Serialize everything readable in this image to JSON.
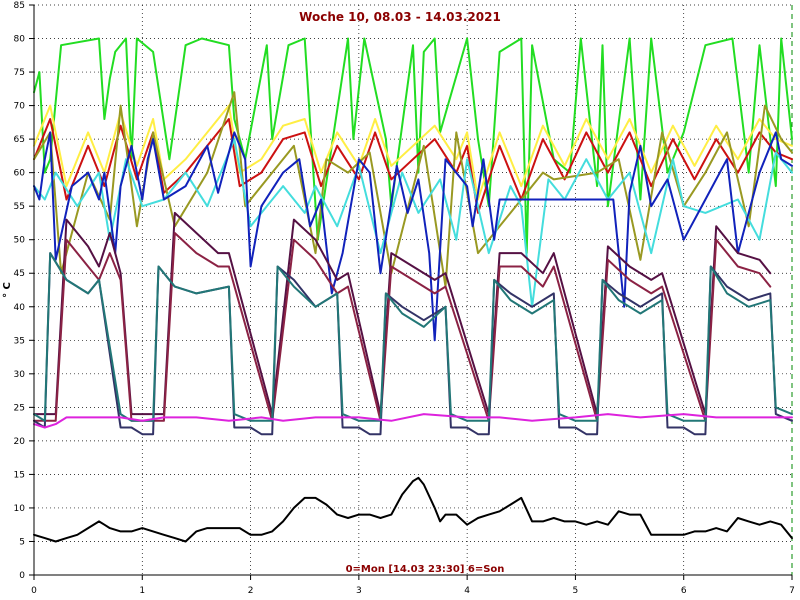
{
  "chart_data": {
    "type": "line",
    "title": "Woche 10, 08.03 - 14.03.2021",
    "footer": "0=Mon [14.03 23:30] 6=Son",
    "ylabel": "° C",
    "xlabel": "",
    "xlim": [
      0,
      7
    ],
    "ylim": [
      0,
      85
    ],
    "x_ticks": [
      0,
      1,
      2,
      3,
      4,
      5,
      6,
      7
    ],
    "y_ticks": [
      0,
      5,
      10,
      15,
      20,
      25,
      30,
      35,
      40,
      45,
      50,
      55,
      60,
      65,
      70,
      75,
      80,
      85
    ],
    "grid": true,
    "series": [
      {
        "color": "#22dd22",
        "x": [
          0,
          0.05,
          0.1,
          0.15,
          0.25,
          0.6,
          0.65,
          0.7,
          0.75,
          0.85,
          0.9,
          0.95,
          1.1,
          1.25,
          1.4,
          1.55,
          1.8,
          1.85,
          1.95,
          2.15,
          2.2,
          2.35,
          2.5,
          2.62,
          2.75,
          2.9,
          2.95,
          3.05,
          3.25,
          3.3,
          3.5,
          3.55,
          3.6,
          3.7,
          3.75,
          4.0,
          4.1,
          4.2,
          4.3,
          4.5,
          4.55,
          4.6,
          4.8,
          4.95,
          5.05,
          5.2,
          5.25,
          5.3,
          5.5,
          5.6,
          5.7,
          5.85,
          6.0,
          6.2,
          6.45,
          6.6,
          6.7,
          6.85,
          6.9,
          7.0
        ],
        "values": [
          72,
          75,
          60,
          62,
          79,
          80,
          68,
          74,
          78,
          80,
          62,
          80,
          78,
          62,
          79,
          80,
          79,
          68,
          62,
          79,
          65,
          79,
          80,
          50,
          64,
          80,
          65,
          80,
          65,
          55,
          79,
          60,
          78,
          80,
          66,
          80,
          65,
          55,
          78,
          80,
          48,
          79,
          62,
          60,
          80,
          58,
          79,
          55,
          80,
          56,
          80,
          60,
          66,
          79,
          80,
          60,
          79,
          58,
          80,
          65
        ]
      },
      {
        "color": "#ffee44",
        "x": [
          0,
          0.15,
          0.3,
          0.5,
          0.65,
          0.8,
          0.95,
          1.1,
          1.2,
          1.4,
          1.6,
          1.8,
          1.9,
          2.1,
          2.3,
          2.5,
          2.65,
          2.8,
          3.0,
          3.15,
          3.3,
          3.5,
          3.7,
          3.9,
          4.0,
          4.1,
          4.3,
          4.5,
          4.7,
          4.9,
          5.1,
          5.3,
          5.5,
          5.7,
          5.9,
          6.1,
          6.3,
          6.5,
          6.7,
          6.85,
          7.0
        ],
        "values": [
          64,
          70,
          58,
          66,
          60,
          69,
          61,
          68,
          59,
          62,
          66,
          70,
          60,
          62,
          67,
          68,
          60,
          66,
          61,
          68,
          61,
          64,
          67,
          62,
          66,
          56,
          66,
          58,
          67,
          61,
          68,
          62,
          68,
          60,
          67,
          61,
          67,
          62,
          68,
          65,
          64
        ]
      },
      {
        "color": "#cc1111",
        "x": [
          0,
          0.15,
          0.3,
          0.5,
          0.65,
          0.8,
          0.95,
          1.1,
          1.2,
          1.4,
          1.6,
          1.8,
          1.9,
          2.1,
          2.3,
          2.5,
          2.65,
          2.8,
          3.0,
          3.15,
          3.3,
          3.5,
          3.7,
          3.9,
          4.0,
          4.1,
          4.3,
          4.5,
          4.7,
          4.9,
          5.1,
          5.3,
          5.5,
          5.7,
          5.9,
          6.1,
          6.3,
          6.5,
          6.7,
          6.85,
          7.0
        ],
        "values": [
          62,
          68,
          56,
          64,
          58,
          67,
          59,
          66,
          57,
          60,
          64,
          68,
          58,
          60,
          65,
          66,
          58,
          64,
          59,
          66,
          59,
          62,
          65,
          60,
          64,
          54,
          64,
          56,
          65,
          59,
          66,
          60,
          66,
          58,
          65,
          59,
          65,
          60,
          66,
          63,
          62
        ]
      },
      {
        "color": "#999922",
        "x": [
          0,
          0.15,
          0.25,
          0.5,
          0.7,
          0.8,
          0.95,
          1.1,
          1.3,
          1.6,
          1.85,
          1.95,
          2.2,
          2.4,
          2.6,
          2.7,
          2.9,
          3.1,
          3.3,
          3.6,
          3.8,
          3.9,
          4.1,
          4.3,
          4.5,
          4.7,
          4.8,
          5.2,
          5.4,
          5.6,
          5.8,
          6.0,
          6.2,
          6.4,
          6.6,
          6.75,
          6.9,
          7.0
        ],
        "values": [
          62,
          66,
          45,
          60,
          53,
          70,
          52,
          66,
          52,
          60,
          72,
          55,
          60,
          64,
          48,
          62,
          60,
          63,
          45,
          64,
          43,
          66,
          48,
          52,
          56,
          60,
          59,
          60,
          62,
          47,
          66,
          55,
          60,
          66,
          52,
          70,
          65,
          63
        ]
      },
      {
        "color": "#44dddd",
        "x": [
          0,
          0.1,
          0.2,
          0.4,
          0.6,
          0.7,
          0.85,
          1.0,
          1.2,
          1.4,
          1.6,
          1.85,
          2.0,
          2.3,
          2.5,
          2.6,
          2.8,
          3.0,
          3.2,
          3.4,
          3.55,
          3.75,
          3.9,
          4.0,
          4.2,
          4.4,
          4.5,
          4.6,
          4.75,
          4.9,
          5.1,
          5.3,
          5.5,
          5.7,
          5.9,
          6.0,
          6.2,
          6.5,
          6.7,
          6.85,
          7.0
        ],
        "values": [
          58,
          56,
          60,
          55,
          60,
          50,
          62,
          55,
          56,
          60,
          55,
          65,
          52,
          58,
          54,
          58,
          52,
          61,
          48,
          60,
          54,
          59,
          50,
          62,
          48,
          58,
          55,
          40,
          59,
          56,
          62,
          56,
          60,
          48,
          62,
          55,
          54,
          56,
          50,
          63,
          60
        ]
      },
      {
        "color": "#1122bb",
        "x": [
          0,
          0.05,
          0.1,
          0.15,
          0.2,
          0.35,
          0.5,
          0.6,
          0.65,
          0.75,
          0.8,
          0.9,
          1.0,
          1.05,
          1.1,
          1.2,
          1.4,
          1.6,
          1.7,
          1.85,
          1.95,
          2.0,
          2.1,
          2.3,
          2.45,
          2.55,
          2.65,
          2.75,
          2.85,
          3.0,
          3.1,
          3.2,
          3.35,
          3.45,
          3.55,
          3.65,
          3.7,
          3.8,
          4.0,
          4.05,
          4.15,
          4.25,
          4.3,
          5.35,
          5.45,
          5.5,
          5.6,
          5.7,
          5.85,
          6.0,
          6.2,
          6.4,
          6.5,
          6.7,
          6.85,
          6.9,
          7.0
        ],
        "values": [
          58,
          56,
          62,
          66,
          47,
          58,
          60,
          56,
          60,
          48,
          58,
          64,
          56,
          62,
          65,
          56,
          58,
          64,
          57,
          66,
          62,
          46,
          55,
          60,
          62,
          52,
          56,
          42,
          48,
          62,
          60,
          45,
          61,
          54,
          59,
          48,
          35,
          62,
          58,
          52,
          62,
          50,
          56,
          56,
          40,
          57,
          64,
          55,
          59,
          50,
          56,
          62,
          48,
          60,
          66,
          62,
          61
        ]
      },
      {
        "color": "#551144",
        "x": [
          0,
          0.2,
          0.3,
          0.5,
          0.6,
          0.7,
          0.8,
          0.9,
          1.2,
          1.3,
          1.5,
          1.7,
          1.8,
          2.2,
          2.4,
          2.6,
          2.8,
          2.9,
          3.2,
          3.3,
          3.5,
          3.7,
          3.8,
          4.2,
          4.3,
          4.5,
          4.7,
          4.8,
          5.2,
          5.3,
          5.5,
          5.7,
          5.8,
          6.2,
          6.3,
          6.5,
          6.7,
          6.8
        ],
        "values": [
          24,
          24,
          53,
          49,
          46,
          51,
          45,
          24,
          24,
          54,
          51,
          48,
          48,
          24,
          53,
          50,
          44,
          45,
          24,
          48,
          46,
          44,
          45,
          24,
          48,
          48,
          45,
          48,
          24,
          49,
          46,
          44,
          45,
          24,
          52,
          48,
          47,
          45
        ]
      },
      {
        "color": "#8b2244",
        "x": [
          0,
          0.2,
          0.3,
          0.5,
          0.6,
          0.7,
          0.8,
          0.9,
          1.2,
          1.3,
          1.5,
          1.7,
          1.8,
          2.2,
          2.4,
          2.6,
          2.8,
          2.9,
          3.2,
          3.3,
          3.5,
          3.7,
          3.8,
          4.2,
          4.3,
          4.5,
          4.7,
          4.8,
          5.2,
          5.3,
          5.5,
          5.7,
          5.8,
          6.2,
          6.3,
          6.5,
          6.7,
          6.8
        ],
        "values": [
          23,
          23,
          50,
          46,
          44,
          48,
          44,
          23,
          23,
          51,
          48,
          46,
          46,
          23,
          50,
          47,
          42,
          43,
          23,
          46,
          44,
          42,
          43,
          23,
          46,
          46,
          43,
          46,
          23,
          47,
          44,
          42,
          43,
          23,
          50,
          46,
          45,
          43
        ]
      },
      {
        "color": "#333366",
        "x": [
          0,
          0.1,
          0.15,
          0.3,
          0.5,
          0.6,
          0.8,
          0.9,
          1.0,
          1.1,
          1.15,
          1.3,
          1.5,
          1.8,
          1.85,
          2.0,
          2.1,
          2.2,
          2.25,
          2.4,
          2.6,
          2.8,
          2.85,
          3.0,
          3.1,
          3.2,
          3.25,
          3.4,
          3.6,
          3.8,
          3.85,
          4.0,
          4.1,
          4.2,
          4.25,
          4.4,
          4.6,
          4.8,
          4.85,
          5.0,
          5.1,
          5.2,
          5.25,
          5.4,
          5.6,
          5.8,
          5.85,
          6.0,
          6.1,
          6.2,
          6.25,
          6.4,
          6.6,
          6.8,
          6.85,
          7.0
        ],
        "values": [
          23,
          22,
          48,
          44,
          42,
          44,
          22,
          22,
          21,
          21,
          46,
          43,
          42,
          43,
          22,
          22,
          21,
          21,
          46,
          44,
          40,
          42,
          22,
          22,
          21,
          21,
          42,
          40,
          38,
          40,
          22,
          22,
          21,
          21,
          44,
          42,
          40,
          42,
          22,
          22,
          21,
          21,
          44,
          42,
          40,
          42,
          22,
          22,
          21,
          21,
          46,
          43,
          41,
          42,
          24,
          23
        ]
      },
      {
        "color": "#227777",
        "x": [
          0,
          0.1,
          0.15,
          0.3,
          0.5,
          0.6,
          0.8,
          0.9,
          1.0,
          1.1,
          1.15,
          1.3,
          1.5,
          1.8,
          1.85,
          2.0,
          2.1,
          2.2,
          2.25,
          2.4,
          2.6,
          2.8,
          2.85,
          3.0,
          3.1,
          3.2,
          3.25,
          3.4,
          3.6,
          3.8,
          3.85,
          4.0,
          4.1,
          4.2,
          4.25,
          4.4,
          4.6,
          4.8,
          4.85,
          5.0,
          5.1,
          5.2,
          5.25,
          5.4,
          5.6,
          5.8,
          5.85,
          6.0,
          6.1,
          6.2,
          6.25,
          6.4,
          6.6,
          6.8,
          6.85,
          7.0
        ],
        "values": [
          24,
          23,
          48,
          44,
          42,
          44,
          24,
          23,
          23,
          23,
          46,
          43,
          42,
          43,
          24,
          23,
          23,
          23,
          46,
          43,
          40,
          42,
          24,
          23,
          23,
          23,
          42,
          39,
          37,
          40,
          24,
          23,
          23,
          23,
          44,
          41,
          39,
          41,
          24,
          23,
          23,
          23,
          44,
          41,
          39,
          41,
          24,
          23,
          23,
          23,
          46,
          42,
          40,
          41,
          25,
          24
        ]
      },
      {
        "color": "#dd22dd",
        "x": [
          0,
          0.1,
          0.2,
          0.3,
          0.5,
          0.8,
          1.0,
          1.2,
          1.5,
          1.8,
          2.1,
          2.3,
          2.6,
          3.0,
          3.3,
          3.6,
          4.0,
          4.3,
          4.6,
          5.0,
          5.3,
          5.6,
          6.0,
          6.3,
          6.6,
          7.0
        ],
        "values": [
          22.5,
          22,
          22.5,
          23.5,
          23.5,
          23.5,
          23,
          23.5,
          23.5,
          23,
          23.5,
          23,
          23.5,
          23.5,
          23,
          24,
          23.5,
          23.5,
          23,
          23.5,
          24,
          23.5,
          24,
          23.5,
          23.5,
          23.5
        ]
      },
      {
        "color": "#000000",
        "x": [
          0,
          0.1,
          0.2,
          0.3,
          0.4,
          0.5,
          0.6,
          0.65,
          0.7,
          0.8,
          0.9,
          1.0,
          1.1,
          1.2,
          1.3,
          1.4,
          1.5,
          1.6,
          1.7,
          1.8,
          1.9,
          2.0,
          2.1,
          2.2,
          2.3,
          2.4,
          2.5,
          2.6,
          2.7,
          2.8,
          2.9,
          3.0,
          3.1,
          3.2,
          3.3,
          3.4,
          3.5,
          3.55,
          3.6,
          3.7,
          3.75,
          3.8,
          3.9,
          4.0,
          4.1,
          4.2,
          4.3,
          4.4,
          4.5,
          4.6,
          4.7,
          4.8,
          4.9,
          5.0,
          5.1,
          5.2,
          5.3,
          5.4,
          5.5,
          5.6,
          5.7,
          5.8,
          5.9,
          6.0,
          6.1,
          6.2,
          6.3,
          6.4,
          6.5,
          6.6,
          6.7,
          6.8,
          6.9,
          7.0
        ],
        "values": [
          6,
          5.5,
          5,
          5.5,
          6,
          7,
          8,
          7.5,
          7,
          6.5,
          6.5,
          7,
          6.5,
          6,
          5.5,
          5,
          6.5,
          7,
          7,
          7,
          7,
          6,
          6,
          6.5,
          8,
          10,
          11.5,
          11.5,
          10.5,
          9,
          8.5,
          9,
          9,
          8.5,
          9,
          12,
          14,
          14.5,
          13.5,
          10,
          8,
          9,
          9,
          7.5,
          8.5,
          9,
          9.5,
          10.5,
          11.5,
          8,
          8,
          8.5,
          8,
          8,
          7.5,
          8,
          7.5,
          9.5,
          9,
          9,
          6,
          6,
          6,
          6,
          6.5,
          6.5,
          7,
          6.5,
          8.5,
          8,
          7.5,
          8,
          7.5,
          5.5
        ]
      }
    ]
  }
}
